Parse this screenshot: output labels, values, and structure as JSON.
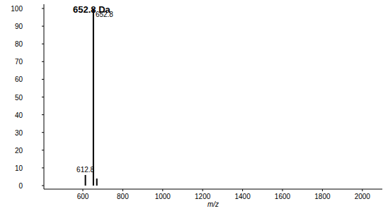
{
  "chart_data": {
    "type": "stem",
    "title": "652.8 Da",
    "x_label": "m/z",
    "x": [
      612.8,
      652.8,
      670
    ],
    "values": [
      6,
      100,
      4
    ],
    "color": "#000000",
    "annotations": [
      {
        "x": 612.8,
        "y": 6,
        "text": "612.8"
      },
      {
        "x": 652.8,
        "y": 100,
        "text": "652.8"
      }
    ],
    "xlim": [
      405,
      2100
    ],
    "xticks": [
      600,
      800,
      1000,
      1200,
      1400,
      1600,
      1800,
      2000
    ],
    "ylim": [
      0,
      100
    ],
    "yticks": [
      0,
      10,
      20,
      30,
      40,
      50,
      60,
      70,
      80,
      90,
      100
    ],
    "grid": false
  }
}
